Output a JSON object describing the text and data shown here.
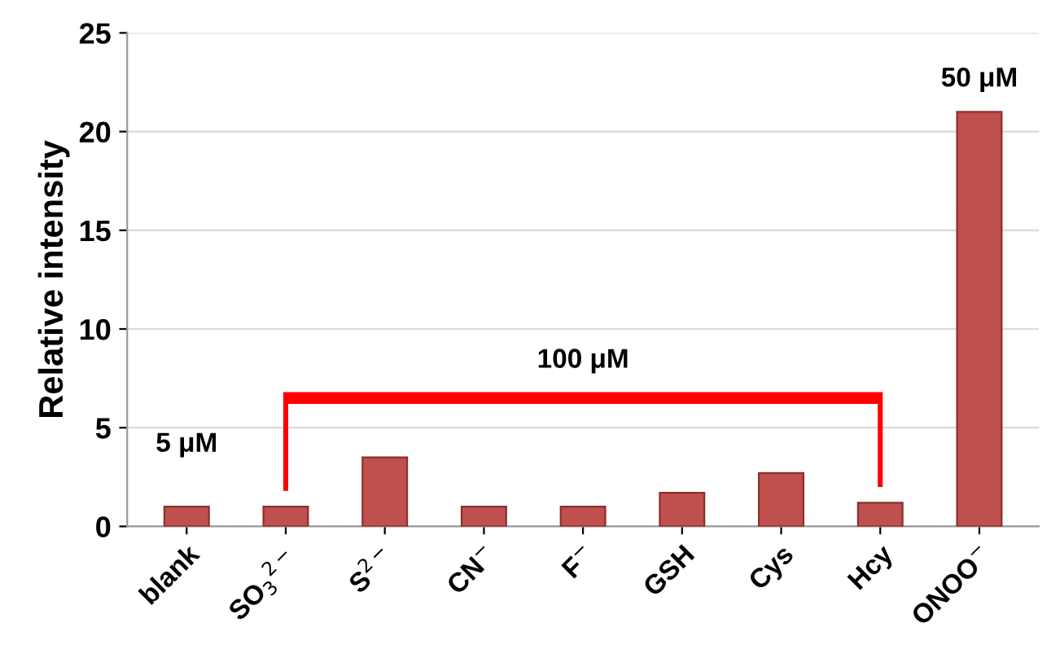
{
  "chart_data": {
    "type": "bar",
    "ylabel": "Relative intensity",
    "categories": [
      "blank",
      "SO$_{3}$$^{2−}$",
      "S$^{2−}$",
      "CN$^{−}$",
      "F$^{−}$",
      "GSH",
      "Cys",
      "Hcy",
      "ONOO$^{−}$"
    ],
    "values": [
      1.0,
      1.0,
      3.5,
      1.0,
      1.0,
      1.7,
      2.7,
      1.2,
      21.0
    ],
    "color": "#c0504d",
    "ylim": [
      0,
      25
    ],
    "yticks": [
      0,
      5,
      10,
      15,
      20,
      25
    ],
    "grid": "y",
    "annotations": [
      "5 μM",
      "100 μM",
      "50 μM"
    ]
  }
}
